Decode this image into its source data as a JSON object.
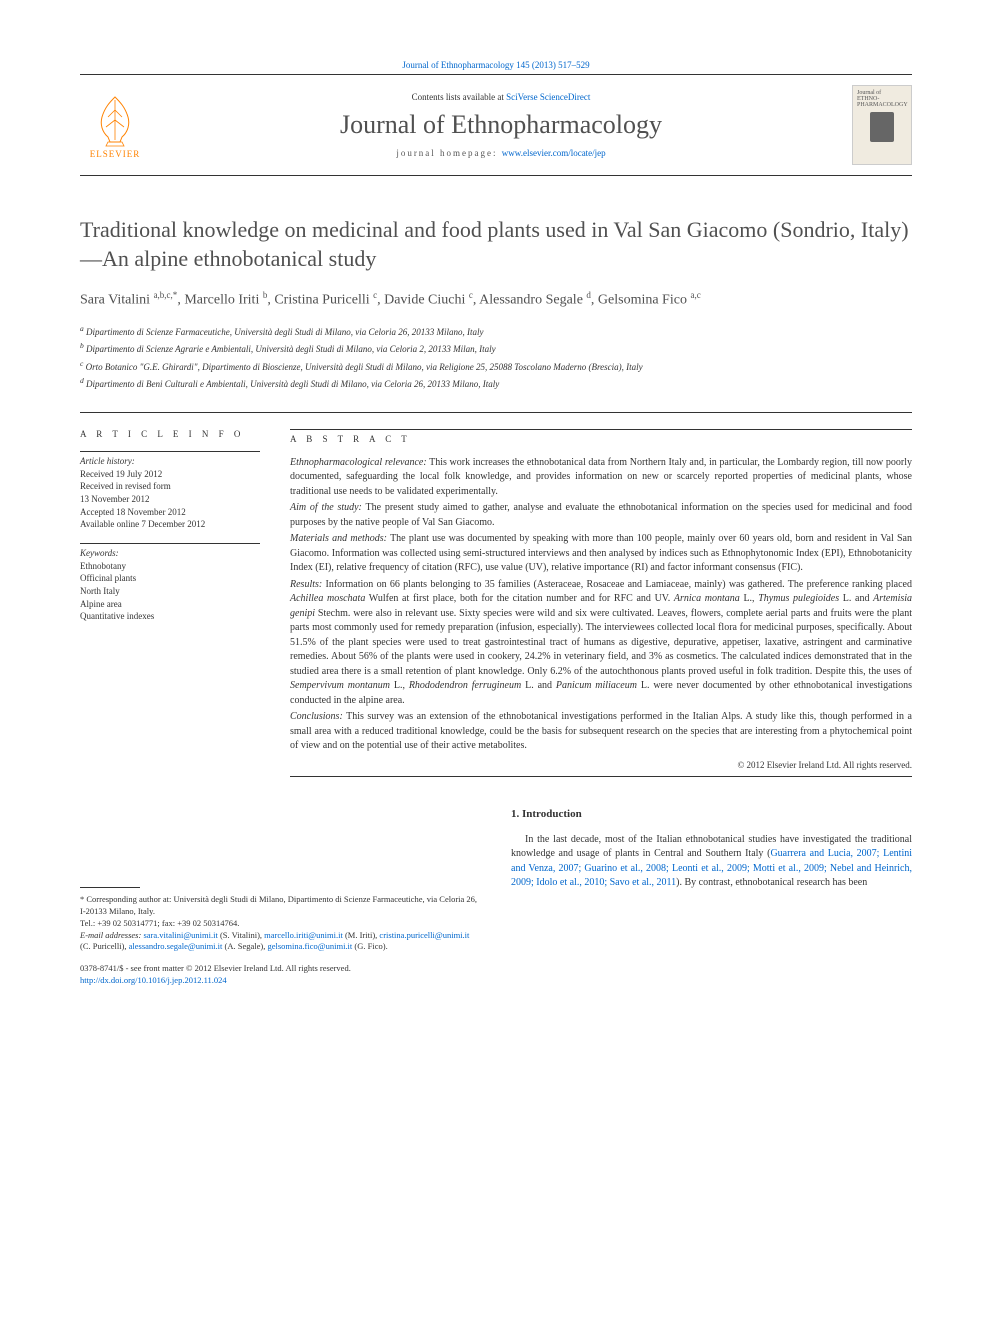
{
  "citation": "Journal of Ethnopharmacology 145 (2013) 517–529",
  "header": {
    "contents_prefix": "Contents lists available at ",
    "contents_link": "SciVerse ScienceDirect",
    "journal_name": "Journal of Ethnopharmacology",
    "homepage_prefix": "journal homepage: ",
    "homepage_link": "www.elsevier.com/locate/jep",
    "publisher": "ELSEVIER",
    "cover_text": "Journal of\nETHNO-\nPHARMACOLOGY"
  },
  "title": "Traditional knowledge on medicinal and food plants used in Val San Giacomo (Sondrio, Italy)—An alpine ethnobotanical study",
  "authors_html": "Sara Vitalini <sup>a,b,c,*</sup>, Marcello Iriti <sup>b</sup>, Cristina Puricelli <sup>c</sup>, Davide Ciuchi <sup>c</sup>, Alessandro Segale <sup>d</sup>, Gelsomina Fico <sup>a,c</sup>",
  "affiliations": [
    "a Dipartimento di Scienze Farmaceutiche, Università degli Studi di Milano, via Celoria 26, 20133 Milano, Italy",
    "b Dipartimento di Scienze Agrarie e Ambientali, Università degli Studi di Milano, via Celoria 2, 20133 Milan, Italy",
    "c Orto Botanico \"G.E. Ghirardi\", Dipartimento di Bioscienze, Università degli Studi di Milano, via Religione 25, 25088 Toscolano Maderno (Brescia), Italy",
    "d Dipartimento di Beni Culturali e Ambientali, Università degli Studi di Milano, via Celoria 26, 20133 Milano, Italy"
  ],
  "info": {
    "heading": "A R T I C L E  I N F O",
    "history_label": "Article history:",
    "history": [
      "Received 19 July 2012",
      "Received in revised form",
      "13 November 2012",
      "Accepted 18 November 2012",
      "Available online 7 December 2012"
    ],
    "keywords_label": "Keywords:",
    "keywords": [
      "Ethnobotany",
      "Officinal plants",
      "North Italy",
      "Alpine area",
      "Quantitative indexes"
    ]
  },
  "abstract": {
    "heading": "A B S T R A C T",
    "sections": [
      {
        "label": "Ethnopharmacological relevance:",
        "text": "This work increases the ethnobotanical data from Northern Italy and, in particular, the Lombardy region, till now poorly documented, safeguarding the local folk knowledge, and provides information on new or scarcely reported properties of medicinal plants, whose traditional use needs to be validated experimentally."
      },
      {
        "label": "Aim of the study:",
        "text": "The present study aimed to gather, analyse and evaluate the ethnobotanical information on the species used for medicinal and food purposes by the native people of Val San Giacomo."
      },
      {
        "label": "Materials and methods:",
        "text": "The plant use was documented by speaking with more than 100 people, mainly over 60 years old, born and resident in Val San Giacomo. Information was collected using semi-structured interviews and then analysed by indices such as Ethnophytonomic Index (EPI), Ethnobotanicity Index (EI), relative frequency of citation (RFC), use value (UV), relative importance (RI) and factor informant consensus (FIC)."
      },
      {
        "label": "Results:",
        "text": "Information on 66 plants belonging to 35 families (Asteraceae, Rosaceae and Lamiaceae, mainly) was gathered. The preference ranking placed Achillea moschata Wulfen at first place, both for the citation number and for RFC and UV. Arnica montana L., Thymus pulegioides L. and Artemisia genipi Stechm. were also in relevant use. Sixty species were wild and six were cultivated. Leaves, flowers, complete aerial parts and fruits were the plant parts most commonly used for remedy preparation (infusion, especially). The interviewees collected local flora for medicinal purposes, specifically. About 51.5% of the plant species were used to treat gastrointestinal tract of humans as digestive, depurative, appetiser, laxative, astringent and carminative remedies. About 56% of the plants were used in cookery, 24.2% in veterinary field, and 3% as cosmetics. The calculated indices demonstrated that in the studied area there is a small retention of plant knowledge. Only 6.2% of the autochthonous plants proved useful in folk tradition. Despite this, the uses of Sempervivum montanum L., Rhododendron ferrugineum L. and Panicum miliaceum L. were never documented by other ethnobotanical investigations conducted in the alpine area."
      },
      {
        "label": "Conclusions:",
        "text": "This survey was an extension of the ethnobotanical investigations performed in the Italian Alps. A study like this, though performed in a small area with a reduced traditional knowledge, could be the basis for subsequent research on the species that are interesting from a phytochemical point of view and on the potential use of their active metabolites."
      }
    ],
    "copyright": "© 2012 Elsevier Ireland Ltd. All rights reserved."
  },
  "footnote": {
    "corresponding": "* Corresponding author at: Università degli Studi di Milano, Dipartimento di Scienze Farmaceutiche, via Celoria 26, I-20133 Milano, Italy.",
    "tel": "Tel.: +39 02 50314771; fax: +39 02 50314764.",
    "email_label": "E-mail addresses:",
    "emails": "sara.vitalini@unimi.it (S. Vitalini), marcello.iriti@unimi.it (M. Iriti), cristina.puricelli@unimi.it (C. Puricelli), alessandro.segale@unimi.it (A. Segale), gelsomina.fico@unimi.it (G. Fico).",
    "issn": "0378-8741/$ - see front matter © 2012 Elsevier Ireland Ltd. All rights reserved.",
    "doi": "http://dx.doi.org/10.1016/j.jep.2012.11.024"
  },
  "intro": {
    "heading": "1.  Introduction",
    "text_prefix": "In the last decade, most of the Italian ethnobotanical studies have investigated the traditional knowledge and usage of plants in Central and Southern Italy (",
    "refs": "Guarrera and Lucia, 2007; Lentini and Venza, 2007; Guarino et al., 2008; Leonti et al., 2009; Motti et al., 2009; Nebel and Heinrich, 2009; Idolo et al., 2010; Savo et al., 2011",
    "text_suffix": "). By contrast, ethnobotanical research has been"
  },
  "colors": {
    "link": "#0066cc",
    "orange": "#ff8200",
    "heading_gray": "#505050"
  }
}
